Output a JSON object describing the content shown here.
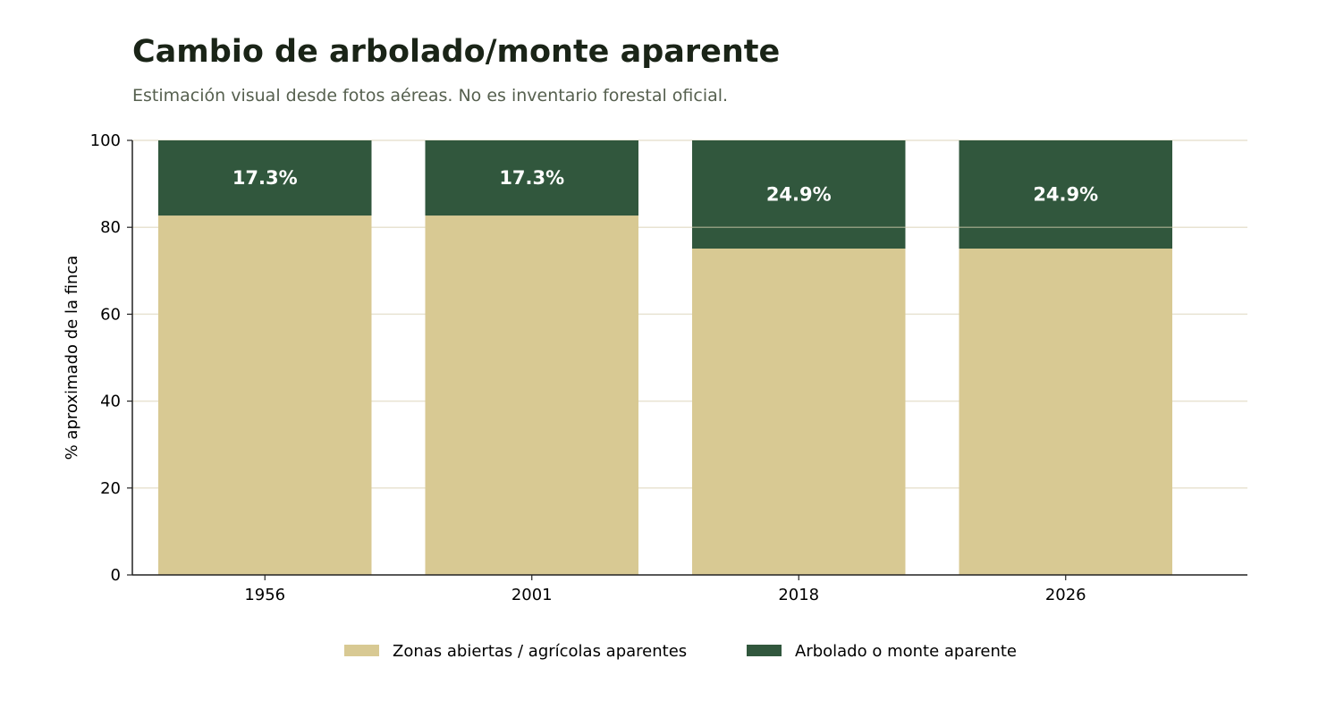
{
  "chart_data": {
    "type": "bar",
    "stacked": true,
    "title": "Cambio de arbolado/monte aparente",
    "subtitle": "Estimación visual desde fotos aéreas. No es inventario forestal oficial.",
    "xlabel": "",
    "ylabel": "% aproximado de la finca",
    "ylim": [
      0,
      100
    ],
    "yticks": [
      0,
      20,
      40,
      60,
      80,
      100
    ],
    "categories": [
      "1956",
      "2001",
      "2018",
      "2026"
    ],
    "series": [
      {
        "name": "Zonas abiertas / agrícolas aparentes",
        "values": [
          82.7,
          82.7,
          75.1,
          75.1
        ],
        "color": "#d8c993"
      },
      {
        "name": "Arbolado o monte aparente",
        "values": [
          17.3,
          17.3,
          24.9,
          24.9
        ],
        "color": "#31573d"
      }
    ],
    "data_labels": [
      "17.3%",
      "17.3%",
      "24.9%",
      "24.9%"
    ],
    "grid": "horizontal",
    "grid_color": "#e8e3d2",
    "legend_position": "bottom-center"
  }
}
